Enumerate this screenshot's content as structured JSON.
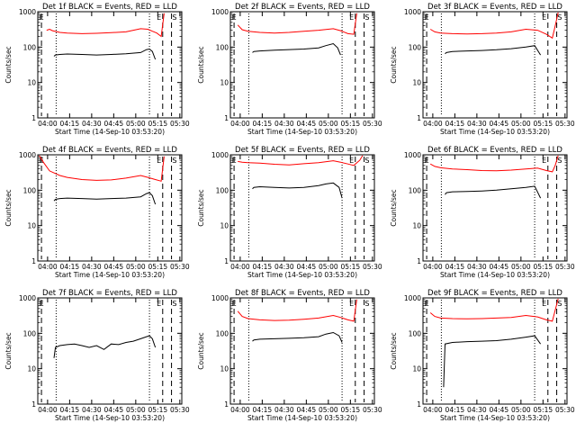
{
  "chart_data": [
    {
      "type": "line",
      "title": "Det 1f BLACK = Events, RED = LLD",
      "ylabel": "Counts/sec",
      "xlabel": "Start Time (14-Sep-10 03:53:20)",
      "x_ticks": [
        "04:00",
        "04:15",
        "04:30",
        "04:45",
        "05:00",
        "05:15",
        "05:30"
      ],
      "y_ticks": [
        "1",
        "10",
        "100",
        "1000"
      ],
      "ylim": [
        1,
        1000
      ],
      "yscale": "log",
      "x_range_minutes": [
        0,
        98
      ],
      "markers": [
        "E",
        "S"
      ],
      "series": [
        {
          "color": "#ff0000",
          "x": [
            6,
            8,
            10,
            15,
            20,
            30,
            40,
            50,
            60,
            70,
            75,
            78,
            81,
            84,
            86
          ],
          "values": [
            300,
            320,
            290,
            260,
            250,
            240,
            245,
            255,
            270,
            330,
            320,
            280,
            250,
            200,
            900
          ]
        },
        {
          "color": "#000000",
          "x": [
            11,
            12,
            15,
            20,
            30,
            40,
            50,
            60,
            70,
            74,
            76,
            78,
            80
          ],
          "values": [
            55,
            60,
            62,
            64,
            62,
            60,
            62,
            65,
            70,
            85,
            88,
            75,
            45
          ]
        }
      ]
    },
    {
      "type": "line",
      "title": "Det 2f BLACK = Events, RED = LLD",
      "ylabel": "Counts/sec",
      "xlabel": "Start Time (14-Sep-10 03:53:20)",
      "x_ticks": [
        "04:00",
        "04:15",
        "04:30",
        "04:45",
        "05:00",
        "05:15",
        "05:30"
      ],
      "y_ticks": [
        "1",
        "10",
        "100",
        "1000"
      ],
      "ylim": [
        1,
        1000
      ],
      "yscale": "log",
      "x_range_minutes": [
        0,
        98
      ],
      "markers": [
        "E",
        "S"
      ],
      "series": [
        {
          "color": "#ff0000",
          "x": [
            5,
            8,
            12,
            20,
            30,
            40,
            50,
            60,
            70,
            75,
            80,
            84,
            86
          ],
          "values": [
            420,
            310,
            280,
            260,
            250,
            260,
            280,
            300,
            330,
            290,
            240,
            230,
            900
          ]
        },
        {
          "color": "#000000",
          "x": [
            15,
            16,
            20,
            30,
            40,
            50,
            60,
            65,
            70,
            73,
            75
          ],
          "values": [
            70,
            75,
            78,
            82,
            85,
            88,
            95,
            110,
            125,
            95,
            60
          ]
        }
      ]
    },
    {
      "type": "line",
      "title": "Det 3f BLACK = Events, RED = LLD",
      "ylabel": "Counts/sec",
      "xlabel": "Start Time (14-Sep-10 03:53:20)",
      "x_ticks": [
        "04:00",
        "04:15",
        "04:30",
        "04:45",
        "05:00",
        "05:15",
        "05:30"
      ],
      "y_ticks": [
        "1",
        "10",
        "100",
        "1000"
      ],
      "ylim": [
        1,
        1000
      ],
      "yscale": "log",
      "x_range_minutes": [
        0,
        98
      ],
      "markers": [
        "E",
        "S"
      ],
      "series": [
        {
          "color": "#ff0000",
          "x": [
            5,
            8,
            12,
            20,
            30,
            40,
            50,
            60,
            70,
            78,
            84,
            88,
            90,
            92
          ],
          "values": [
            320,
            270,
            250,
            240,
            235,
            240,
            250,
            270,
            320,
            300,
            230,
            180,
            400,
            950
          ]
        },
        {
          "color": "#000000",
          "x": [
            15,
            16,
            20,
            30,
            40,
            50,
            60,
            70,
            76,
            80
          ],
          "values": [
            65,
            70,
            75,
            78,
            80,
            84,
            90,
            100,
            110,
            60
          ]
        }
      ]
    },
    {
      "type": "line",
      "title": "Det 4f BLACK = Events, RED = LLD",
      "ylabel": "Counts/sec",
      "xlabel": "Start Time (14-Sep-10 03:53:20)",
      "x_ticks": [
        "04:00",
        "04:15",
        "04:30",
        "04:45",
        "05:00",
        "05:15",
        "05:30"
      ],
      "y_ticks": [
        "1",
        "10",
        "100",
        "1000"
      ],
      "ylim": [
        1,
        1000
      ],
      "yscale": "log",
      "x_range_minutes": [
        0,
        98
      ],
      "markers": [
        "E",
        "S"
      ],
      "series": [
        {
          "color": "#ff0000",
          "x": [
            1,
            4,
            8,
            15,
            20,
            30,
            40,
            50,
            60,
            70,
            75,
            80,
            84,
            86
          ],
          "values": [
            950,
            600,
            350,
            260,
            230,
            200,
            190,
            195,
            220,
            260,
            230,
            200,
            180,
            900
          ]
        },
        {
          "color": "#000000",
          "x": [
            11,
            12,
            15,
            20,
            30,
            40,
            50,
            60,
            70,
            74,
            76,
            78,
            80
          ],
          "values": [
            50,
            55,
            58,
            60,
            58,
            56,
            58,
            60,
            65,
            80,
            85,
            70,
            40
          ]
        }
      ]
    },
    {
      "type": "line",
      "title": "Det 5f BLACK = Events, RED = LLD",
      "ylabel": "Counts/sec",
      "xlabel": "Start Time (14-Sep-10 03:53:20)",
      "x_ticks": [
        "04:00",
        "04:15",
        "04:30",
        "04:45",
        "05:00",
        "05:15",
        "05:30"
      ],
      "y_ticks": [
        "1",
        "10",
        "100",
        "1000"
      ],
      "ylim": [
        1,
        1000
      ],
      "yscale": "log",
      "x_range_minutes": [
        0,
        98
      ],
      "markers": [
        "E",
        "S"
      ],
      "series": [
        {
          "color": "#ff0000",
          "x": [
            5,
            8,
            12,
            20,
            30,
            40,
            50,
            60,
            70,
            75,
            80,
            84,
            88,
            90
          ],
          "values": [
            650,
            620,
            600,
            580,
            540,
            520,
            560,
            600,
            680,
            620,
            550,
            500,
            700,
            950
          ]
        },
        {
          "color": "#000000",
          "x": [
            15,
            16,
            20,
            30,
            40,
            50,
            60,
            65,
            70,
            74,
            76
          ],
          "values": [
            110,
            120,
            125,
            120,
            115,
            120,
            135,
            150,
            160,
            120,
            60
          ]
        }
      ]
    },
    {
      "type": "line",
      "title": "Det 6f BLACK = Events, RED = LLD",
      "ylabel": "Counts/sec",
      "xlabel": "Start Time (14-Sep-10 03:53:20)",
      "x_ticks": [
        "04:00",
        "04:15",
        "04:30",
        "04:45",
        "05:00",
        "05:15",
        "05:30"
      ],
      "y_ticks": [
        "1",
        "10",
        "100",
        "1000"
      ],
      "ylim": [
        1,
        1000
      ],
      "yscale": "log",
      "x_range_minutes": [
        0,
        98
      ],
      "markers": [
        "E",
        "S"
      ],
      "series": [
        {
          "color": "#ff0000",
          "x": [
            5,
            8,
            12,
            20,
            30,
            40,
            50,
            60,
            70,
            78,
            84,
            88,
            90,
            92
          ],
          "values": [
            550,
            470,
            430,
            400,
            380,
            360,
            355,
            370,
            400,
            420,
            360,
            330,
            500,
            950
          ]
        },
        {
          "color": "#000000",
          "x": [
            15,
            16,
            20,
            30,
            40,
            50,
            60,
            70,
            76,
            80
          ],
          "values": [
            75,
            85,
            90,
            92,
            95,
            100,
            110,
            120,
            130,
            60
          ]
        }
      ]
    },
    {
      "type": "line",
      "title": "Det 7f BLACK = Events, RED = LLD",
      "ylabel": "Counts/sec",
      "xlabel": "Start Time (14-Sep-10 03:53:20)",
      "x_ticks": [
        "04:00",
        "04:15",
        "04:30",
        "04:45",
        "05:00",
        "05:15",
        "05:30"
      ],
      "y_ticks": [
        "1",
        "10",
        "100",
        "1000"
      ],
      "ylim": [
        1,
        1000
      ],
      "yscale": "log",
      "x_range_minutes": [
        0,
        98
      ],
      "markers": [
        "E",
        "S"
      ],
      "series": [
        {
          "color": "#000000",
          "x": [
            11,
            12,
            15,
            20,
            25,
            30,
            35,
            40,
            45,
            50,
            55,
            60,
            65,
            70,
            74,
            76,
            78,
            80
          ],
          "values": [
            20,
            40,
            45,
            48,
            50,
            45,
            40,
            45,
            35,
            50,
            48,
            55,
            60,
            70,
            80,
            85,
            70,
            40
          ]
        }
      ]
    },
    {
      "type": "line",
      "title": "Det 8f BLACK = Events, RED = LLD",
      "ylabel": "Counts/sec",
      "xlabel": "Start Time (14-Sep-10 03:53:20)",
      "x_ticks": [
        "04:00",
        "04:15",
        "04:30",
        "04:45",
        "05:00",
        "05:15",
        "05:30"
      ],
      "y_ticks": [
        "1",
        "10",
        "100",
        "1000"
      ],
      "ylim": [
        1,
        1000
      ],
      "yscale": "log",
      "x_range_minutes": [
        0,
        98
      ],
      "markers": [
        "E",
        "S"
      ],
      "series": [
        {
          "color": "#ff0000",
          "x": [
            5,
            8,
            12,
            20,
            30,
            40,
            50,
            60,
            70,
            75,
            80,
            84,
            86
          ],
          "values": [
            420,
            300,
            260,
            240,
            230,
            235,
            250,
            270,
            320,
            280,
            240,
            220,
            900
          ]
        },
        {
          "color": "#000000",
          "x": [
            15,
            16,
            20,
            30,
            40,
            50,
            60,
            65,
            70,
            74,
            76
          ],
          "values": [
            60,
            65,
            68,
            70,
            72,
            75,
            80,
            95,
            105,
            85,
            55
          ]
        }
      ]
    },
    {
      "type": "line",
      "title": "Det 9f BLACK = Events, RED = LLD",
      "ylabel": "Counts/sec",
      "xlabel": "Start Time (14-Sep-10 03:53:20)",
      "x_ticks": [
        "04:00",
        "04:15",
        "04:30",
        "04:45",
        "05:00",
        "05:15",
        "05:30"
      ],
      "y_ticks": [
        "1",
        "10",
        "100",
        "1000"
      ],
      "ylim": [
        1,
        1000
      ],
      "yscale": "log",
      "x_range_minutes": [
        0,
        98
      ],
      "markers": [
        "E",
        "S"
      ],
      "series": [
        {
          "color": "#ff0000",
          "x": [
            5,
            8,
            12,
            20,
            30,
            40,
            50,
            60,
            70,
            78,
            84,
            88,
            90,
            92
          ],
          "values": [
            380,
            300,
            270,
            260,
            255,
            260,
            270,
            280,
            320,
            290,
            240,
            220,
            450,
            950
          ]
        },
        {
          "color": "#000000",
          "x": [
            14,
            15,
            20,
            30,
            40,
            50,
            60,
            70,
            76,
            80
          ],
          "values": [
            3,
            50,
            55,
            58,
            60,
            62,
            68,
            78,
            85,
            50
          ]
        }
      ]
    }
  ]
}
